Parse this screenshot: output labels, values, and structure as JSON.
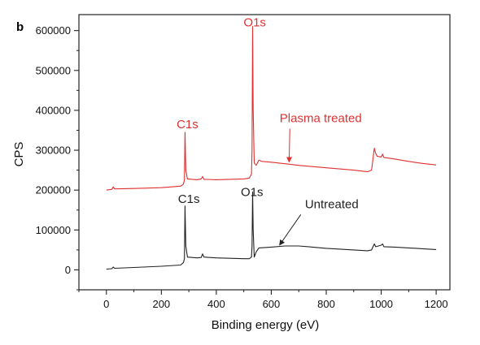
{
  "panel_label": "b",
  "chart_data": {
    "type": "line",
    "xlabel": "Binding energy (eV)",
    "ylabel": "CPS",
    "xlim": [
      -100,
      1250
    ],
    "ylim": [
      -50000,
      640000
    ],
    "xticks": [
      0,
      200,
      400,
      600,
      800,
      1000,
      1200
    ],
    "yticks": [
      0,
      100000,
      200000,
      300000,
      400000,
      500000,
      600000
    ],
    "xtick_labels": [
      "0",
      "200",
      "400",
      "600",
      "800",
      "1000",
      "1200"
    ],
    "ytick_labels": [
      "0",
      "100000",
      "200000",
      "300000",
      "400000",
      "500000",
      "600000"
    ],
    "grid": false,
    "series": [
      {
        "name": "Plasma treated",
        "color": "#e03030",
        "points": [
          [
            0,
            200000
          ],
          [
            20,
            202000
          ],
          [
            25,
            208000
          ],
          [
            30,
            203000
          ],
          [
            100,
            204000
          ],
          [
            200,
            206000
          ],
          [
            270,
            210000
          ],
          [
            280,
            215000
          ],
          [
            284,
            225000
          ],
          [
            286,
            345000
          ],
          [
            289,
            250000
          ],
          [
            295,
            228000
          ],
          [
            330,
            226000
          ],
          [
            345,
            228000
          ],
          [
            350,
            234000
          ],
          [
            355,
            227000
          ],
          [
            400,
            226000
          ],
          [
            450,
            227000
          ],
          [
            500,
            228000
          ],
          [
            520,
            230000
          ],
          [
            528,
            240000
          ],
          [
            530,
            300000
          ],
          [
            532,
            610000
          ],
          [
            534,
            400000
          ],
          [
            538,
            268000
          ],
          [
            545,
            262000
          ],
          [
            555,
            275000
          ],
          [
            565,
            272000
          ],
          [
            600,
            270000
          ],
          [
            650,
            266000
          ],
          [
            700,
            262000
          ],
          [
            800,
            256000
          ],
          [
            900,
            250000
          ],
          [
            950,
            246000
          ],
          [
            965,
            250000
          ],
          [
            975,
            305000
          ],
          [
            980,
            292000
          ],
          [
            985,
            285000
          ],
          [
            1000,
            283000
          ],
          [
            1005,
            290000
          ],
          [
            1010,
            282000
          ],
          [
            1050,
            278000
          ],
          [
            1100,
            272000
          ],
          [
            1150,
            267000
          ],
          [
            1200,
            263000
          ]
        ]
      },
      {
        "name": "Untreated",
        "color": "#222222",
        "points": [
          [
            0,
            2000
          ],
          [
            20,
            3000
          ],
          [
            25,
            7000
          ],
          [
            30,
            4000
          ],
          [
            100,
            6000
          ],
          [
            200,
            9000
          ],
          [
            270,
            12000
          ],
          [
            280,
            18000
          ],
          [
            284,
            28000
          ],
          [
            286,
            160000
          ],
          [
            289,
            60000
          ],
          [
            295,
            32000
          ],
          [
            330,
            30000
          ],
          [
            345,
            31000
          ],
          [
            350,
            40000
          ],
          [
            355,
            32000
          ],
          [
            400,
            30000
          ],
          [
            450,
            29000
          ],
          [
            500,
            28000
          ],
          [
            520,
            28000
          ],
          [
            528,
            32000
          ],
          [
            530,
            60000
          ],
          [
            532,
            195000
          ],
          [
            534,
            100000
          ],
          [
            538,
            32000
          ],
          [
            545,
            45000
          ],
          [
            555,
            55000
          ],
          [
            600,
            57000
          ],
          [
            650,
            60000
          ],
          [
            700,
            60000
          ],
          [
            750,
            57000
          ],
          [
            800,
            54000
          ],
          [
            900,
            50000
          ],
          [
            950,
            48000
          ],
          [
            965,
            50000
          ],
          [
            975,
            65000
          ],
          [
            980,
            58000
          ],
          [
            990,
            60000
          ],
          [
            1000,
            62000
          ],
          [
            1005,
            65000
          ],
          [
            1010,
            58000
          ],
          [
            1050,
            57000
          ],
          [
            1100,
            55000
          ],
          [
            1150,
            53000
          ],
          [
            1200,
            51000
          ]
        ]
      }
    ],
    "annotations": [
      {
        "text": "O1s",
        "color": "#e03030",
        "x": 540,
        "y": 610000
      },
      {
        "text": "C1s",
        "color": "#e03030",
        "x": 295,
        "y": 355000
      },
      {
        "text": "Plasma treated",
        "color": "#e03030",
        "x": 780,
        "y": 370000,
        "arrow_to": [
          665,
          270000
        ]
      },
      {
        "text": "C1s",
        "color": "#222222",
        "x": 300,
        "y": 168000
      },
      {
        "text": "O1s",
        "color": "#222222",
        "x": 530,
        "y": 185000
      },
      {
        "text": "Untreated",
        "color": "#222222",
        "x": 820,
        "y": 155000,
        "arrow_to": [
          630,
          62000
        ]
      }
    ]
  }
}
